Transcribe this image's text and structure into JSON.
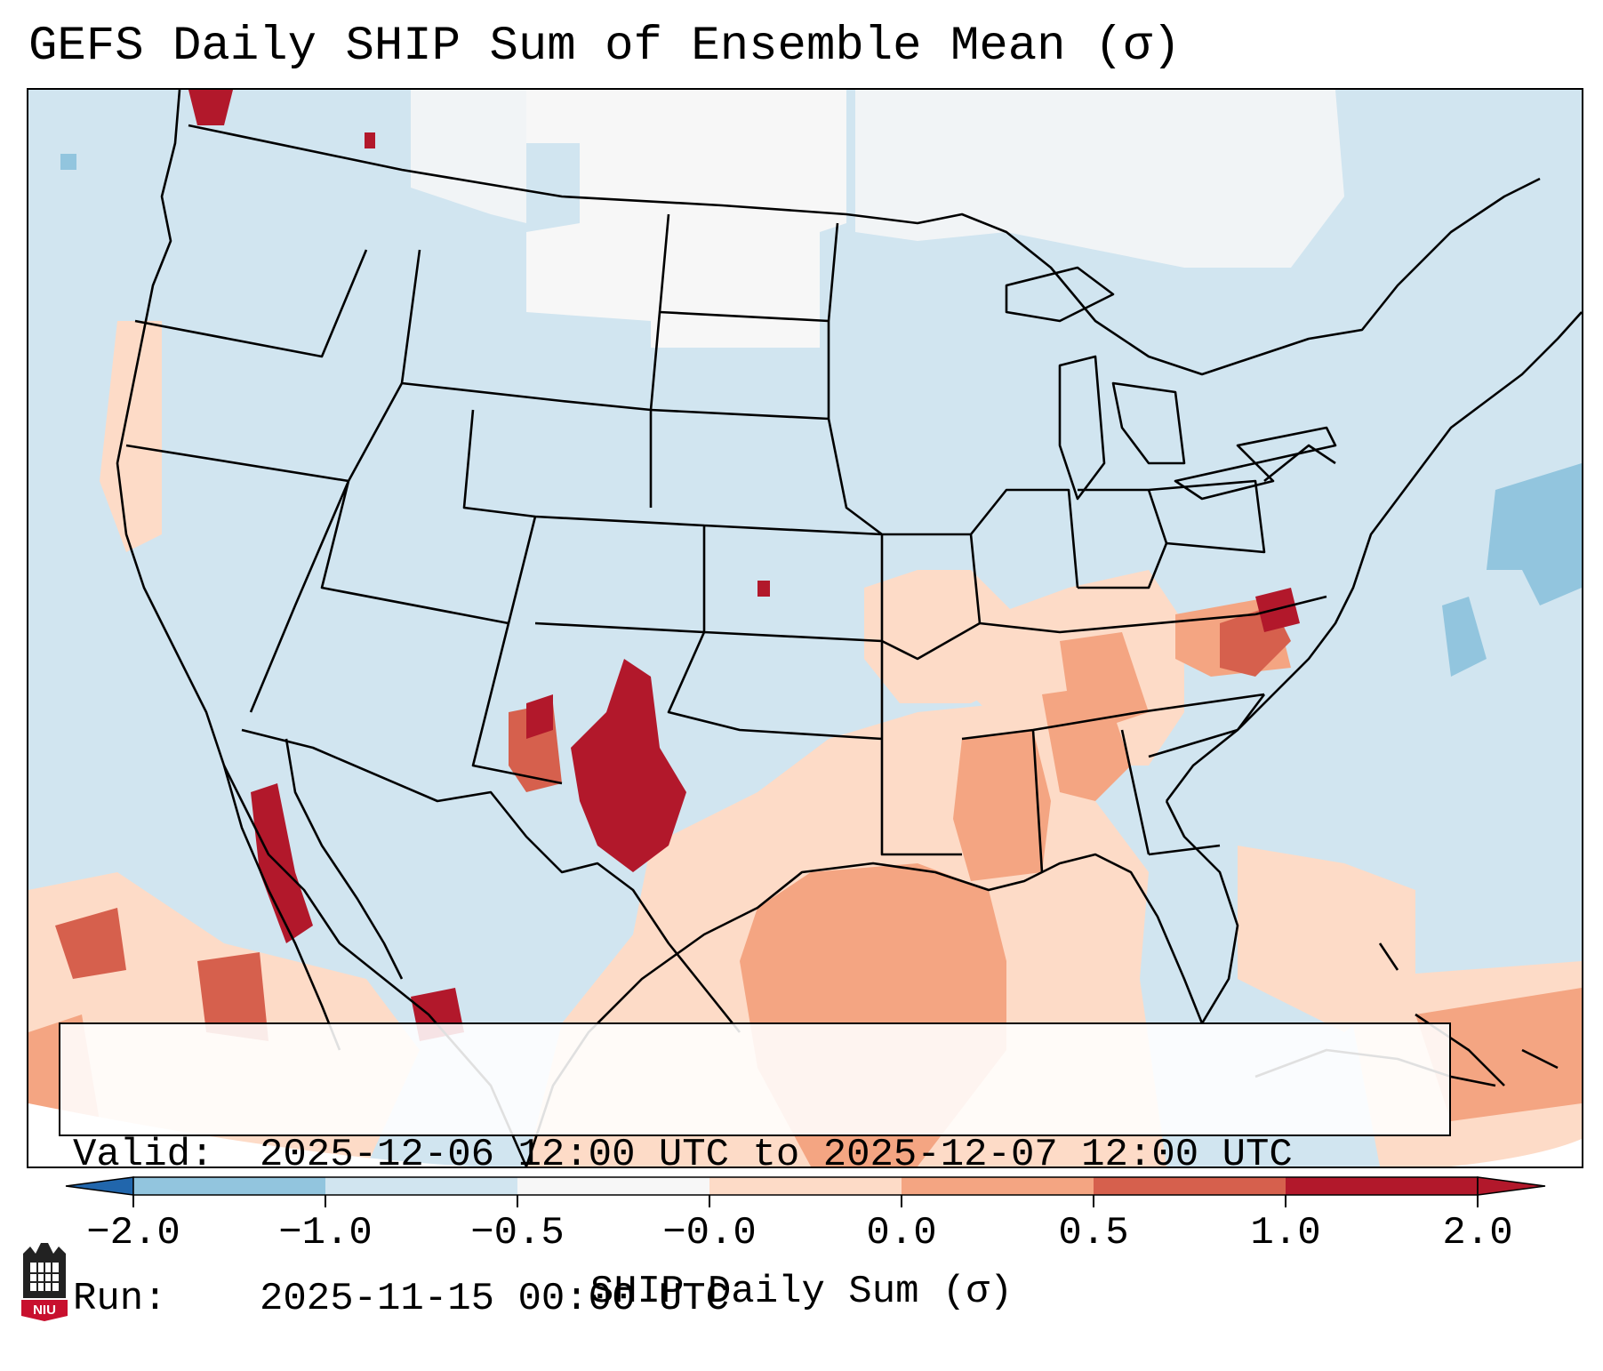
{
  "title": "GEFS Daily SHIP Sum of Ensemble Mean (σ)",
  "map": {
    "region": "CONUS",
    "background_color": "#d1e5f0",
    "outline_color": "#000000",
    "highlight_regions": [
      {
        "area": "west Texas / eastern New Mexico",
        "level": 2.0
      },
      {
        "area": "western Virginia",
        "level": 1.0
      },
      {
        "area": "northern Gulf of Mexico",
        "level": 0.5
      },
      {
        "area": "Gulf of California",
        "level": 1.0
      },
      {
        "area": "northern Plains / Canada",
        "level": -0.0
      }
    ]
  },
  "info_box": {
    "valid_label": "Valid:",
    "valid_value": "2025-12-06 12:00 UTC to 2025-12-07 12:00 UTC",
    "run_label": "Run:",
    "run_value": "2025-11-15 00:00 UTC"
  },
  "colorbar": {
    "label": "SHIP Daily Sum (σ)",
    "ticks": [
      "−2.0",
      "−1.0",
      "−0.5",
      "−0.0",
      "0.0",
      "0.5",
      "1.0",
      "2.0"
    ],
    "colors": [
      "#4393c3",
      "#92c5de",
      "#d1e5f0",
      "#f7f7f7",
      "#fddbc7",
      "#f4a582",
      "#d6604d",
      "#b2182b"
    ],
    "extend_low_color": "#2166ac",
    "extend_high_color": "#b2182b"
  },
  "logo": {
    "text": "NIU",
    "name": "niu-logo-icon"
  }
}
